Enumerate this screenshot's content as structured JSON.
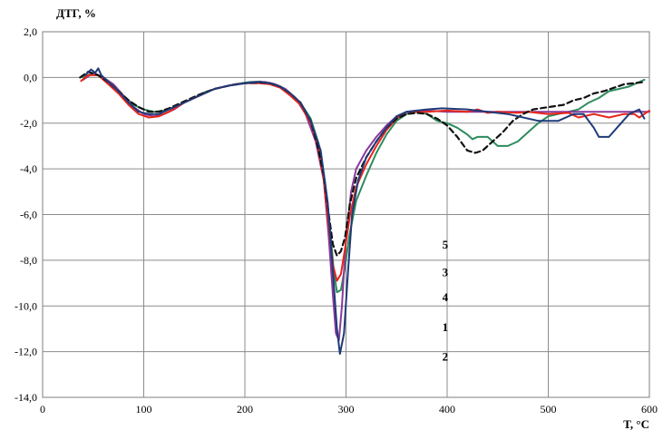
{
  "chart_data": {
    "type": "line",
    "title": "",
    "ylabel": "ДТГ, %",
    "xlabel": "T, °C",
    "xlim": [
      0,
      600
    ],
    "ylim": [
      -14,
      2
    ],
    "x_ticks": [
      0,
      100,
      200,
      300,
      400,
      500,
      600
    ],
    "y_ticks": [
      2,
      0,
      -2,
      -4,
      -6,
      -8,
      -10,
      -12,
      -14
    ],
    "x_tick_labels": [
      "0",
      "100",
      "200",
      "300",
      "400",
      "500",
      "600"
    ],
    "y_tick_labels": [
      "2,0",
      "0,0",
      "-2,0",
      "-4,0",
      "-6,0",
      "-8,0",
      "-10,0",
      "-12,0",
      "-14,0"
    ],
    "grid": "both",
    "legend": "none",
    "series": [
      {
        "label": "1",
        "color": "#8a3a9c",
        "style": "solid",
        "points": [
          [
            40,
            -0.1
          ],
          [
            50,
            0.2
          ],
          [
            60,
            0.0
          ],
          [
            70,
            -0.3
          ],
          [
            80,
            -0.8
          ],
          [
            90,
            -1.3
          ],
          [
            100,
            -1.6
          ],
          [
            110,
            -1.7
          ],
          [
            120,
            -1.6
          ],
          [
            130,
            -1.4
          ],
          [
            140,
            -1.1
          ],
          [
            150,
            -0.9
          ],
          [
            160,
            -0.7
          ],
          [
            170,
            -0.5
          ],
          [
            180,
            -0.4
          ],
          [
            190,
            -0.3
          ],
          [
            200,
            -0.25
          ],
          [
            210,
            -0.2
          ],
          [
            220,
            -0.2
          ],
          [
            230,
            -0.3
          ],
          [
            240,
            -0.5
          ],
          [
            250,
            -0.9
          ],
          [
            260,
            -1.6
          ],
          [
            270,
            -2.8
          ],
          [
            278,
            -4.5
          ],
          [
            283,
            -7.0
          ],
          [
            287,
            -9.5
          ],
          [
            290,
            -11.2
          ],
          [
            293,
            -11.5
          ],
          [
            296,
            -10.0
          ],
          [
            300,
            -7.0
          ],
          [
            305,
            -5.0
          ],
          [
            310,
            -4.0
          ],
          [
            320,
            -3.2
          ],
          [
            330,
            -2.6
          ],
          [
            340,
            -2.1
          ],
          [
            350,
            -1.7
          ],
          [
            360,
            -1.5
          ],
          [
            370,
            -1.45
          ],
          [
            380,
            -1.45
          ],
          [
            400,
            -1.5
          ],
          [
            450,
            -1.5
          ],
          [
            500,
            -1.5
          ],
          [
            550,
            -1.5
          ],
          [
            600,
            -1.5
          ]
        ]
      },
      {
        "label": "2",
        "color": "#1f3a78",
        "style": "solid",
        "points": [
          [
            42,
            0.1
          ],
          [
            48,
            0.35
          ],
          [
            52,
            0.2
          ],
          [
            55,
            0.4
          ],
          [
            58,
            0.1
          ],
          [
            65,
            -0.2
          ],
          [
            75,
            -0.6
          ],
          [
            85,
            -1.1
          ],
          [
            95,
            -1.5
          ],
          [
            105,
            -1.6
          ],
          [
            115,
            -1.6
          ],
          [
            125,
            -1.4
          ],
          [
            140,
            -1.1
          ],
          [
            155,
            -0.8
          ],
          [
            170,
            -0.5
          ],
          [
            185,
            -0.35
          ],
          [
            200,
            -0.25
          ],
          [
            215,
            -0.2
          ],
          [
            225,
            -0.25
          ],
          [
            235,
            -0.4
          ],
          [
            245,
            -0.7
          ],
          [
            255,
            -1.1
          ],
          [
            265,
            -1.9
          ],
          [
            275,
            -3.2
          ],
          [
            282,
            -5.5
          ],
          [
            287,
            -8.5
          ],
          [
            291,
            -11.0
          ],
          [
            294,
            -12.1
          ],
          [
            298,
            -11.2
          ],
          [
            302,
            -8.5
          ],
          [
            306,
            -6.0
          ],
          [
            312,
            -4.5
          ],
          [
            320,
            -3.5
          ],
          [
            330,
            -2.8
          ],
          [
            340,
            -2.2
          ],
          [
            350,
            -1.7
          ],
          [
            360,
            -1.5
          ],
          [
            380,
            -1.4
          ],
          [
            395,
            -1.35
          ],
          [
            420,
            -1.4
          ],
          [
            460,
            -1.6
          ],
          [
            490,
            -1.9
          ],
          [
            510,
            -1.9
          ],
          [
            525,
            -1.6
          ],
          [
            535,
            -1.6
          ],
          [
            545,
            -2.2
          ],
          [
            550,
            -2.6
          ],
          [
            560,
            -2.6
          ],
          [
            570,
            -2.1
          ],
          [
            580,
            -1.6
          ],
          [
            590,
            -1.4
          ],
          [
            595,
            -1.8
          ]
        ]
      },
      {
        "label": "3",
        "color": "#e8251b",
        "style": "solid",
        "points": [
          [
            38,
            -0.15
          ],
          [
            45,
            0.1
          ],
          [
            55,
            0.1
          ],
          [
            65,
            -0.3
          ],
          [
            75,
            -0.7
          ],
          [
            85,
            -1.2
          ],
          [
            95,
            -1.6
          ],
          [
            105,
            -1.75
          ],
          [
            115,
            -1.7
          ],
          [
            125,
            -1.5
          ],
          [
            140,
            -1.1
          ],
          [
            155,
            -0.8
          ],
          [
            170,
            -0.5
          ],
          [
            185,
            -0.35
          ],
          [
            200,
            -0.25
          ],
          [
            215,
            -0.25
          ],
          [
            225,
            -0.3
          ],
          [
            235,
            -0.45
          ],
          [
            245,
            -0.8
          ],
          [
            255,
            -1.2
          ],
          [
            265,
            -2.0
          ],
          [
            272,
            -3.0
          ],
          [
            278,
            -4.5
          ],
          [
            283,
            -6.5
          ],
          [
            287,
            -8.2
          ],
          [
            291,
            -8.9
          ],
          [
            295,
            -8.6
          ],
          [
            299,
            -7.5
          ],
          [
            304,
            -6.0
          ],
          [
            310,
            -4.8
          ],
          [
            320,
            -3.8
          ],
          [
            330,
            -3.0
          ],
          [
            340,
            -2.3
          ],
          [
            350,
            -1.8
          ],
          [
            360,
            -1.5
          ],
          [
            370,
            -1.5
          ],
          [
            380,
            -1.5
          ],
          [
            400,
            -1.45
          ],
          [
            420,
            -1.5
          ],
          [
            430,
            -1.4
          ],
          [
            440,
            -1.55
          ],
          [
            450,
            -1.5
          ],
          [
            470,
            -1.55
          ],
          [
            480,
            -1.5
          ],
          [
            500,
            -1.6
          ],
          [
            520,
            -1.55
          ],
          [
            530,
            -1.75
          ],
          [
            545,
            -1.6
          ],
          [
            560,
            -1.75
          ],
          [
            575,
            -1.6
          ],
          [
            585,
            -1.6
          ],
          [
            590,
            -1.75
          ],
          [
            600,
            -1.45
          ]
        ]
      },
      {
        "label": "4",
        "color": "#2e8b5e",
        "style": "solid",
        "points": [
          [
            40,
            0.0
          ],
          [
            50,
            0.2
          ],
          [
            60,
            0.0
          ],
          [
            70,
            -0.3
          ],
          [
            80,
            -0.8
          ],
          [
            90,
            -1.2
          ],
          [
            100,
            -1.4
          ],
          [
            110,
            -1.5
          ],
          [
            120,
            -1.45
          ],
          [
            130,
            -1.3
          ],
          [
            145,
            -1.0
          ],
          [
            160,
            -0.65
          ],
          [
            175,
            -0.45
          ],
          [
            190,
            -0.3
          ],
          [
            205,
            -0.2
          ],
          [
            215,
            -0.18
          ],
          [
            225,
            -0.25
          ],
          [
            235,
            -0.4
          ],
          [
            245,
            -0.7
          ],
          [
            255,
            -1.1
          ],
          [
            265,
            -1.8
          ],
          [
            273,
            -2.9
          ],
          [
            279,
            -4.5
          ],
          [
            284,
            -6.5
          ],
          [
            288,
            -8.5
          ],
          [
            291,
            -9.4
          ],
          [
            295,
            -9.3
          ],
          [
            299,
            -8.3
          ],
          [
            303,
            -7.0
          ],
          [
            310,
            -5.4
          ],
          [
            320,
            -4.3
          ],
          [
            330,
            -3.3
          ],
          [
            340,
            -2.5
          ],
          [
            350,
            -1.9
          ],
          [
            360,
            -1.6
          ],
          [
            370,
            -1.5
          ],
          [
            380,
            -1.6
          ],
          [
            390,
            -1.9
          ],
          [
            400,
            -2.0
          ],
          [
            410,
            -2.2
          ],
          [
            420,
            -2.5
          ],
          [
            425,
            -2.7
          ],
          [
            430,
            -2.6
          ],
          [
            440,
            -2.6
          ],
          [
            450,
            -3.0
          ],
          [
            460,
            -3.0
          ],
          [
            470,
            -2.8
          ],
          [
            480,
            -2.4
          ],
          [
            490,
            -2.0
          ],
          [
            500,
            -1.7
          ],
          [
            510,
            -1.6
          ],
          [
            520,
            -1.5
          ],
          [
            530,
            -1.4
          ],
          [
            540,
            -1.1
          ],
          [
            550,
            -0.9
          ],
          [
            560,
            -0.6
          ],
          [
            570,
            -0.5
          ],
          [
            580,
            -0.4
          ],
          [
            590,
            -0.2
          ],
          [
            595,
            -0.1
          ]
        ]
      },
      {
        "label": "5",
        "color": "#111111",
        "style": "dashed",
        "points": [
          [
            37,
            0.0
          ],
          [
            45,
            0.25
          ],
          [
            55,
            0.1
          ],
          [
            65,
            -0.2
          ],
          [
            75,
            -0.6
          ],
          [
            85,
            -1.0
          ],
          [
            95,
            -1.3
          ],
          [
            105,
            -1.5
          ],
          [
            115,
            -1.5
          ],
          [
            125,
            -1.35
          ],
          [
            140,
            -1.05
          ],
          [
            155,
            -0.75
          ],
          [
            170,
            -0.5
          ],
          [
            185,
            -0.35
          ],
          [
            200,
            -0.25
          ],
          [
            215,
            -0.22
          ],
          [
            225,
            -0.25
          ],
          [
            235,
            -0.4
          ],
          [
            245,
            -0.7
          ],
          [
            255,
            -1.1
          ],
          [
            265,
            -1.9
          ],
          [
            272,
            -3.0
          ],
          [
            278,
            -4.3
          ],
          [
            283,
            -6.0
          ],
          [
            287,
            -7.3
          ],
          [
            291,
            -7.8
          ],
          [
            295,
            -7.6
          ],
          [
            299,
            -7.0
          ],
          [
            304,
            -5.5
          ],
          [
            310,
            -4.4
          ],
          [
            320,
            -3.5
          ],
          [
            330,
            -2.8
          ],
          [
            340,
            -2.2
          ],
          [
            350,
            -1.8
          ],
          [
            360,
            -1.6
          ],
          [
            370,
            -1.55
          ],
          [
            380,
            -1.6
          ],
          [
            390,
            -1.8
          ],
          [
            400,
            -2.1
          ],
          [
            410,
            -2.6
          ],
          [
            420,
            -3.2
          ],
          [
            428,
            -3.3
          ],
          [
            435,
            -3.2
          ],
          [
            445,
            -2.8
          ],
          [
            455,
            -2.4
          ],
          [
            465,
            -1.9
          ],
          [
            475,
            -1.6
          ],
          [
            485,
            -1.4
          ],
          [
            500,
            -1.3
          ],
          [
            515,
            -1.2
          ],
          [
            525,
            -1.0
          ],
          [
            535,
            -0.9
          ],
          [
            545,
            -0.7
          ],
          [
            555,
            -0.6
          ],
          [
            565,
            -0.45
          ],
          [
            575,
            -0.3
          ],
          [
            585,
            -0.25
          ],
          [
            595,
            -0.2
          ]
        ]
      }
    ],
    "annotations": [
      {
        "text": "5",
        "x": 319,
        "y": -7.3
      },
      {
        "text": "3",
        "x": 319,
        "y": -8.5
      },
      {
        "text": "4",
        "x": 319,
        "y": -9.6
      },
      {
        "text": "1",
        "x": 319,
        "y": -10.9
      },
      {
        "text": "2",
        "x": 319,
        "y": -12.2
      }
    ]
  }
}
